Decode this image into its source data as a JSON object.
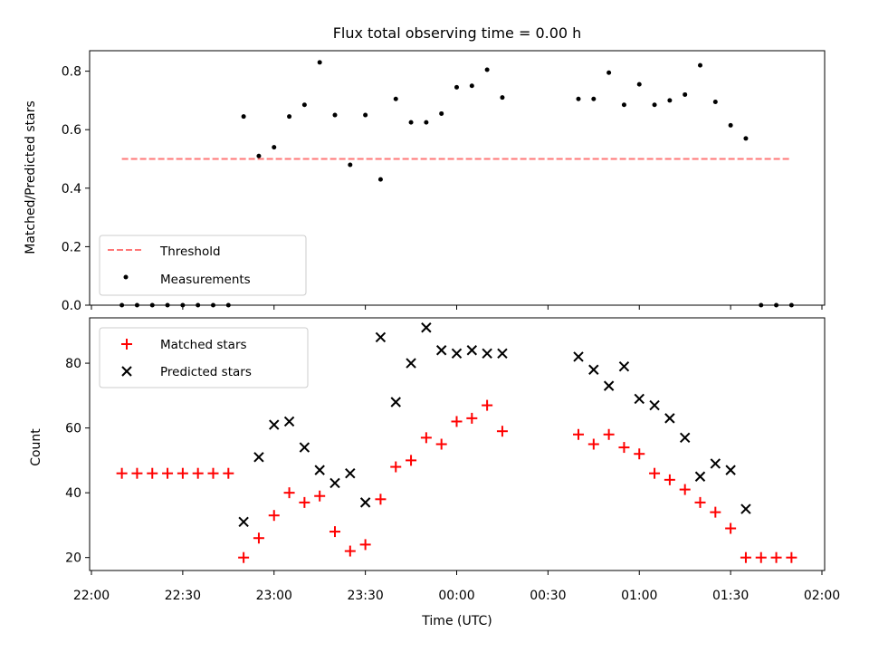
{
  "chart_data": [
    {
      "type": "scatter",
      "title": "Flux total observing time = 0.00 h",
      "xlabel": "",
      "ylabel": "Matched/Predicted stars",
      "xlim": [
        "22:00",
        "02:00"
      ],
      "ylim": [
        0.0,
        0.87
      ],
      "yticks": [
        "0.0",
        "0.2",
        "0.4",
        "0.6",
        "0.8"
      ],
      "legend_position": "lower-left",
      "threshold": {
        "name": "Threshold",
        "color": "#ff7777",
        "style": "dashed",
        "value": 0.5,
        "x_start": "22:10",
        "x_end": "01:50"
      },
      "series": [
        {
          "name": "Measurements",
          "color": "#000000",
          "x": [
            "22:10",
            "22:15",
            "22:20",
            "22:25",
            "22:30",
            "22:35",
            "22:40",
            "22:45",
            "22:50",
            "22:55",
            "23:00",
            "23:05",
            "23:10",
            "23:15",
            "23:20",
            "23:25",
            "23:30",
            "23:35",
            "23:40",
            "23:45",
            "23:50",
            "23:55",
            "00:00",
            "00:05",
            "00:10",
            "00:15",
            "00:40",
            "00:45",
            "00:50",
            "00:55",
            "01:00",
            "01:05",
            "01:10",
            "01:15",
            "01:20",
            "01:25",
            "01:30",
            "01:35",
            "01:40",
            "01:45",
            "01:50"
          ],
          "y": [
            0,
            0,
            0,
            0,
            0,
            0,
            0,
            0,
            0.645,
            0.51,
            0.54,
            0.645,
            0.685,
            0.83,
            0.65,
            0.48,
            0.65,
            0.43,
            0.705,
            0.625,
            0.625,
            0.655,
            0.745,
            0.75,
            0.805,
            0.71,
            0.705,
            0.705,
            0.795,
            0.685,
            0.755,
            0.685,
            0.7,
            0.72,
            0.82,
            0.695,
            0.615,
            0.57,
            0,
            0,
            0
          ]
        }
      ]
    },
    {
      "type": "scatter",
      "title": "",
      "xlabel": "Time (UTC)",
      "ylabel": "Count",
      "xlim": [
        "22:00",
        "02:00"
      ],
      "xticks": [
        "22:00",
        "22:30",
        "23:00",
        "23:30",
        "00:00",
        "00:30",
        "01:00",
        "01:30",
        "02:00"
      ],
      "ylim": [
        16,
        94
      ],
      "yticks": [
        "20",
        "40",
        "60",
        "80"
      ],
      "legend_position": "upper-left",
      "series": [
        {
          "name": "Matched stars",
          "marker": "+",
          "color": "#ff0000",
          "x": [
            "22:10",
            "22:15",
            "22:20",
            "22:25",
            "22:30",
            "22:35",
            "22:40",
            "22:45",
            "22:50",
            "22:55",
            "23:00",
            "23:05",
            "23:10",
            "23:15",
            "23:20",
            "23:25",
            "23:30",
            "23:35",
            "23:40",
            "23:45",
            "23:50",
            "23:55",
            "00:00",
            "00:05",
            "00:10",
            "00:15",
            "00:40",
            "00:45",
            "00:50",
            "00:55",
            "01:00",
            "01:05",
            "01:10",
            "01:15",
            "01:20",
            "01:25",
            "01:30",
            "01:35",
            "01:40",
            "01:45",
            "01:50"
          ],
          "y": [
            46,
            46,
            46,
            46,
            46,
            46,
            46,
            46,
            20,
            26,
            33,
            40,
            37,
            39,
            28,
            22,
            24,
            38,
            48,
            50,
            57,
            55,
            62,
            63,
            67,
            59,
            58,
            55,
            58,
            54,
            52,
            46,
            44,
            41,
            37,
            34,
            29,
            20,
            20,
            20,
            20
          ]
        },
        {
          "name": "Predicted stars",
          "marker": "x",
          "color": "#000000",
          "x": [
            "22:50",
            "22:55",
            "23:00",
            "23:05",
            "23:10",
            "23:15",
            "23:20",
            "23:25",
            "23:30",
            "23:35",
            "23:40",
            "23:45",
            "23:50",
            "23:55",
            "00:00",
            "00:05",
            "00:10",
            "00:15",
            "00:40",
            "00:45",
            "00:50",
            "00:55",
            "01:00",
            "01:05",
            "01:10",
            "01:15",
            "01:20",
            "01:25",
            "01:30",
            "01:35"
          ],
          "y": [
            31,
            51,
            61,
            62,
            54,
            47,
            43,
            46,
            37,
            88,
            68,
            80,
            91,
            84,
            83,
            84,
            83,
            83,
            82,
            78,
            73,
            79,
            69,
            67,
            63,
            57,
            45,
            49,
            47,
            35
          ]
        }
      ]
    }
  ]
}
